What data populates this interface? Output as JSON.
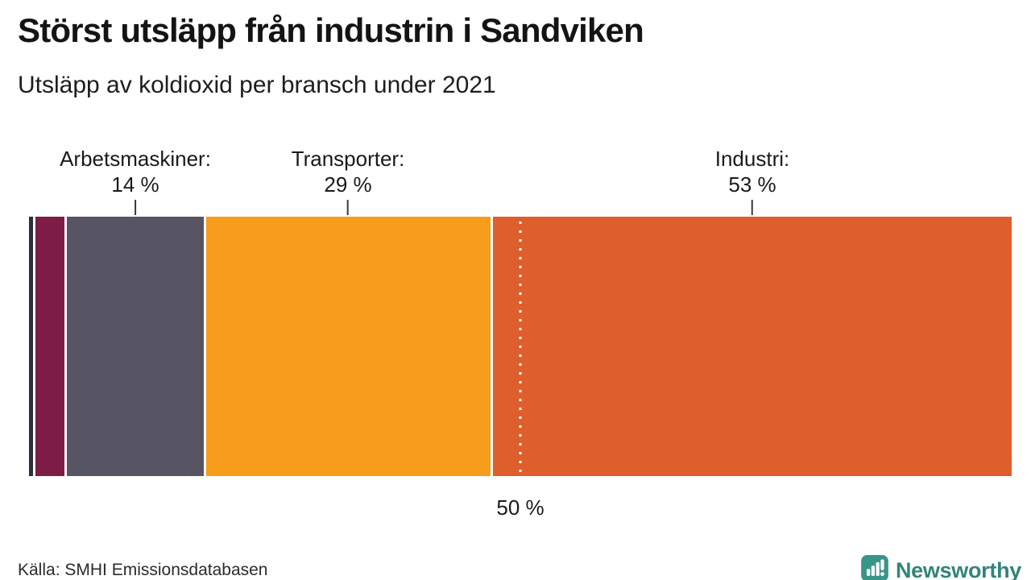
{
  "header": {
    "title": "Störst utsläpp från industrin i Sandviken",
    "subtitle": "Utsläpp av koldioxid per bransch under 2021"
  },
  "chart_data": {
    "type": "stacked-bar",
    "orientation": "horizontal",
    "unit": "%",
    "title": "Störst utsläpp från industrin i Sandviken",
    "subtitle": "Utsläpp av koldioxid per bransch under 2021",
    "segments": [
      {
        "label": "",
        "value": 0.4,
        "color": "#2e2d3a",
        "show_label": false
      },
      {
        "label": "",
        "value": 3.0,
        "color": "#7d1c44",
        "show_label": false
      },
      {
        "label": "Arbetsmaskiner",
        "value": 14,
        "color": "#575463",
        "show_label": true
      },
      {
        "label": "Transporter",
        "value": 29,
        "color": "#f79d1b",
        "show_label": true
      },
      {
        "label": "Industri",
        "value": 53,
        "color": "#de5f2c",
        "show_label": true
      }
    ],
    "reference_line": {
      "value": 50,
      "label": "50 %",
      "style": "white-dotted"
    },
    "xlim": [
      0,
      100
    ],
    "legend": "none"
  },
  "footer": {
    "source": "Källa: SMHI Emissionsdatabasen",
    "brand": "Newsworthy"
  },
  "colors": {
    "brand_icon_teal": "#3a9589",
    "brand_text_teal": "#33847a",
    "tick_gray": "#3a3a3a",
    "text_dark": "#1a1a1a"
  }
}
